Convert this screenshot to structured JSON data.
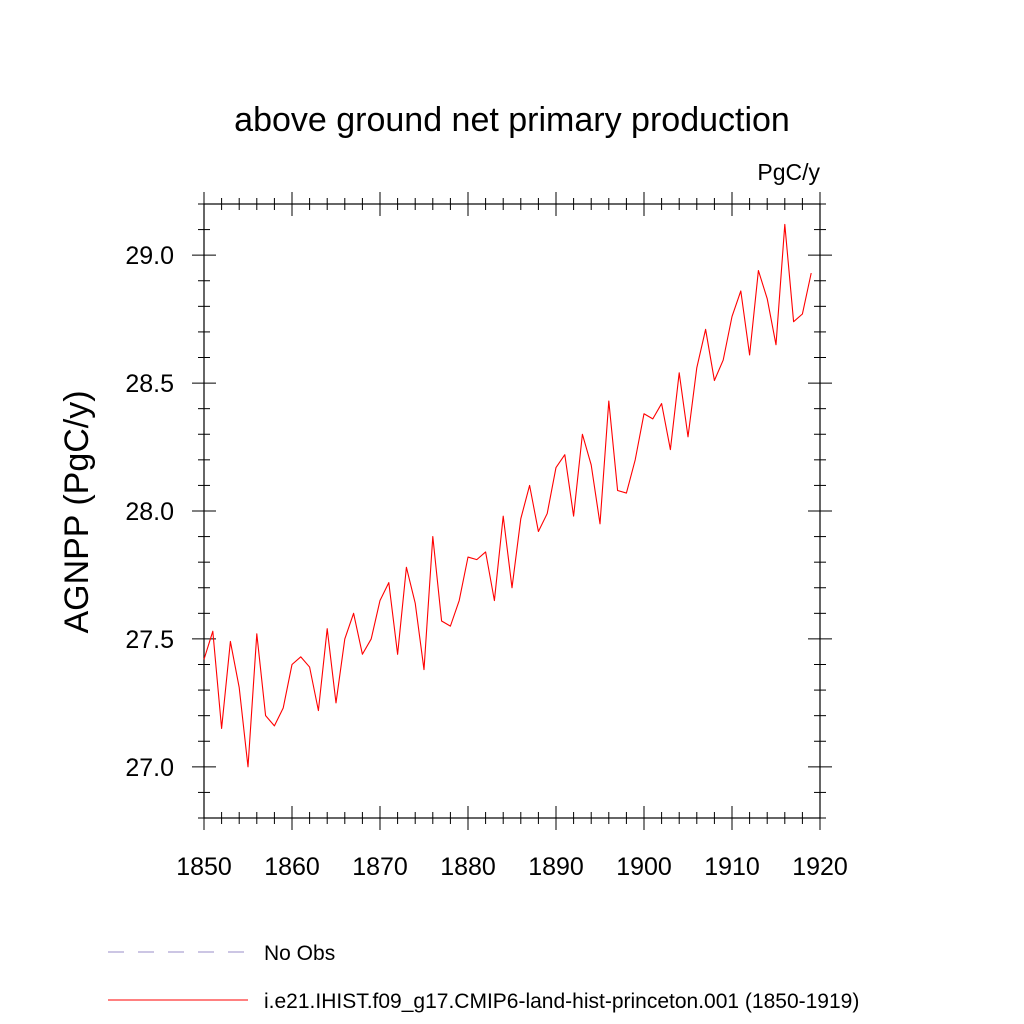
{
  "chart_data": {
    "type": "line",
    "title": "above ground net primary production",
    "units": "PgC/y",
    "xlabel": "",
    "ylabel": "AGNPP  (PgC/y)",
    "xlim": [
      1850,
      1920
    ],
    "ylim": [
      26.8,
      29.2
    ],
    "x_ticks": [
      1850,
      1860,
      1870,
      1880,
      1890,
      1900,
      1910,
      1920
    ],
    "x_tick_labels": [
      "1850",
      "1860",
      "1870",
      "1880",
      "1890",
      "1900",
      "1910",
      "1920"
    ],
    "y_ticks": [
      27.0,
      27.5,
      28.0,
      28.5,
      29.0
    ],
    "y_tick_labels": [
      "27.0",
      "27.5",
      "28.0",
      "28.5",
      "29.0"
    ],
    "grid": false,
    "legend_position": "bottom",
    "legend": [
      {
        "label": "No Obs",
        "color": "#9a8cc8",
        "style": "dashed"
      },
      {
        "label": "i.e21.IHIST.f09_g17.CMIP6-land-hist-princeton.001 (1850-1919)",
        "color": "#ff0000",
        "style": "solid"
      }
    ],
    "series": [
      {
        "name": "i.e21.IHIST.f09_g17.CMIP6-land-hist-princeton.001 (1850-1919)",
        "color": "#ff0000",
        "x": [
          1850,
          1851,
          1852,
          1853,
          1854,
          1855,
          1856,
          1857,
          1858,
          1859,
          1860,
          1861,
          1862,
          1863,
          1864,
          1865,
          1866,
          1867,
          1868,
          1869,
          1870,
          1871,
          1872,
          1873,
          1874,
          1875,
          1876,
          1877,
          1878,
          1879,
          1880,
          1881,
          1882,
          1883,
          1884,
          1885,
          1886,
          1887,
          1888,
          1889,
          1890,
          1891,
          1892,
          1893,
          1894,
          1895,
          1896,
          1897,
          1898,
          1899,
          1900,
          1901,
          1902,
          1903,
          1904,
          1905,
          1906,
          1907,
          1908,
          1909,
          1910,
          1911,
          1912,
          1913,
          1914,
          1915,
          1916,
          1917,
          1918,
          1919
        ],
        "values": [
          27.42,
          27.53,
          27.15,
          27.49,
          27.31,
          27.0,
          27.52,
          27.2,
          27.16,
          27.23,
          27.4,
          27.43,
          27.39,
          27.22,
          27.54,
          27.25,
          27.5,
          27.6,
          27.44,
          27.5,
          27.65,
          27.72,
          27.44,
          27.78,
          27.64,
          27.38,
          27.9,
          27.57,
          27.55,
          27.65,
          27.82,
          27.81,
          27.84,
          27.65,
          27.98,
          27.7,
          27.97,
          28.1,
          27.92,
          27.99,
          28.17,
          28.22,
          27.98,
          28.3,
          28.18,
          27.95,
          28.43,
          28.08,
          28.07,
          28.2,
          28.38,
          28.36,
          28.42,
          28.24,
          28.54,
          28.29,
          28.56,
          28.71,
          28.51,
          28.59,
          28.76,
          28.86,
          28.61,
          28.94,
          28.83,
          28.65,
          29.12,
          28.74,
          28.77,
          28.93
        ]
      }
    ]
  }
}
